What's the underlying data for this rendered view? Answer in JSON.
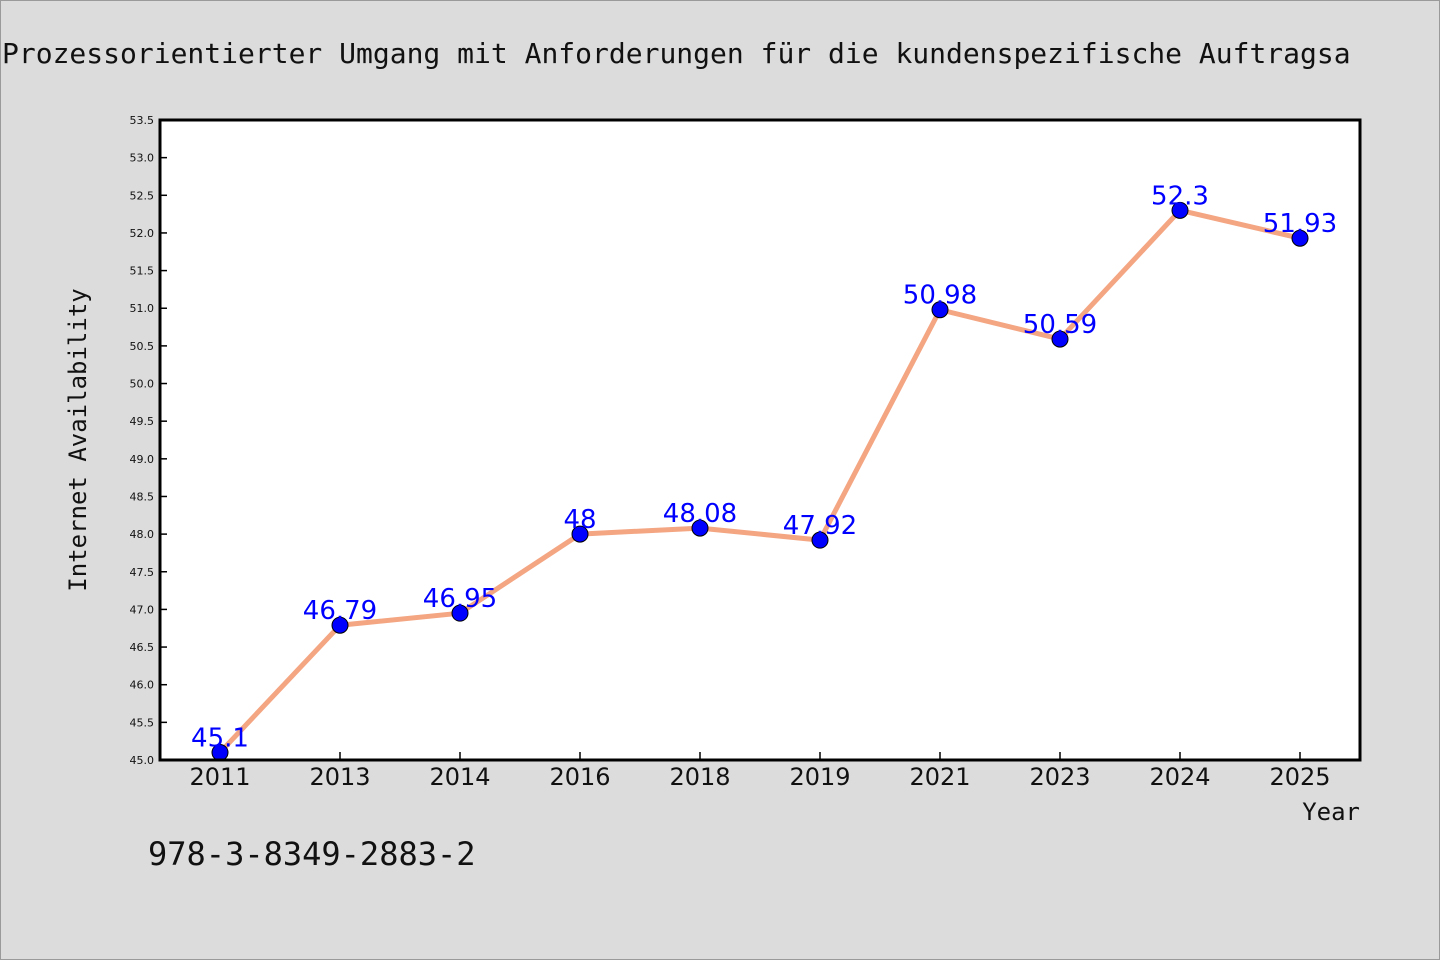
{
  "chart_data": {
    "type": "line",
    "title": "Prozessorientierter Umgang mit Anforderungen für die kundenspezifische Auftragsa",
    "xlabel": "Year",
    "ylabel": "Internet Availability",
    "categories": [
      "2011",
      "2013",
      "2014",
      "2016",
      "2018",
      "2019",
      "2021",
      "2023",
      "2024",
      "2025"
    ],
    "series": [
      {
        "values": [
          45.1,
          46.79,
          46.95,
          48,
          48.08,
          47.92,
          50.98,
          50.59,
          52.3,
          51.93
        ],
        "data_labels": [
          "45.1",
          "46.79",
          "46.95",
          "48",
          "48.08",
          "47.92",
          "50.98",
          "50.59",
          "52.3",
          "51.93"
        ],
        "line_color": "#f4a582",
        "marker_color": "#0000ff"
      }
    ],
    "ylim": [
      45.0,
      53.5
    ],
    "yticks": [
      "45.0",
      "45.5",
      "46.0",
      "46.5",
      "47.0",
      "47.5",
      "48.0",
      "48.5",
      "49.0",
      "49.5",
      "50.0",
      "50.5",
      "51.0",
      "51.5",
      "52.0",
      "52.5",
      "53.0",
      "53.5"
    ],
    "grid": false,
    "legend": "none"
  },
  "footer": {
    "isbn": "978-3-8349-2883-2"
  },
  "colors": {
    "background": "#dcdcdc",
    "plot_background": "#ffffff",
    "line": "#f4a582",
    "marker": "#0000ff",
    "data_label": "#0000ff"
  }
}
